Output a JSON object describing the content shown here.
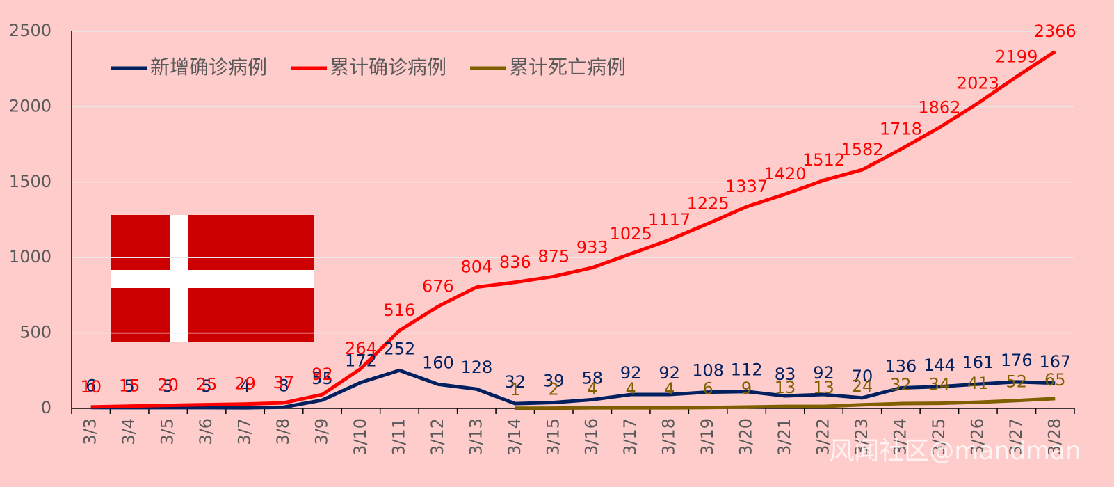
{
  "chart_data": {
    "type": "line",
    "categories": [
      "3/3",
      "3/4",
      "3/5",
      "3/6",
      "3/7",
      "3/8",
      "3/9",
      "3/10",
      "3/11",
      "3/12",
      "3/13",
      "3/14",
      "3/15",
      "3/16",
      "3/17",
      "3/18",
      "3/19",
      "3/20",
      "3/21",
      "3/22",
      "3/23",
      "3/24",
      "3/25",
      "3/26",
      "3/27",
      "3/28"
    ],
    "series": [
      {
        "name": "新增确诊病例",
        "color": "#002060",
        "values": [
          6,
          5,
          5,
          5,
          4,
          8,
          55,
          172,
          252,
          160,
          128,
          32,
          39,
          58,
          92,
          92,
          108,
          112,
          83,
          92,
          70,
          136,
          144,
          161,
          176,
          167
        ]
      },
      {
        "name": "累计确诊病例",
        "color": "#ff0000",
        "values": [
          10,
          15,
          20,
          25,
          29,
          37,
          92,
          264,
          516,
          676,
          804,
          836,
          875,
          933,
          1025,
          1117,
          1225,
          1337,
          1420,
          1512,
          1582,
          1718,
          1862,
          2023,
          2199,
          2366
        ]
      },
      {
        "name": "累计死亡病例",
        "color": "#7f6000",
        "values": [
          null,
          null,
          null,
          null,
          null,
          null,
          null,
          null,
          null,
          null,
          null,
          1,
          2,
          4,
          4,
          4,
          6,
          9,
          13,
          13,
          24,
          32,
          34,
          41,
          52,
          65
        ]
      }
    ],
    "ylim": [
      0,
      2500
    ],
    "yticks": [
      0,
      500,
      1000,
      1500,
      2000,
      2500
    ],
    "grid": true,
    "legend": "top-left",
    "watermark": "风闻社区@mandman"
  }
}
